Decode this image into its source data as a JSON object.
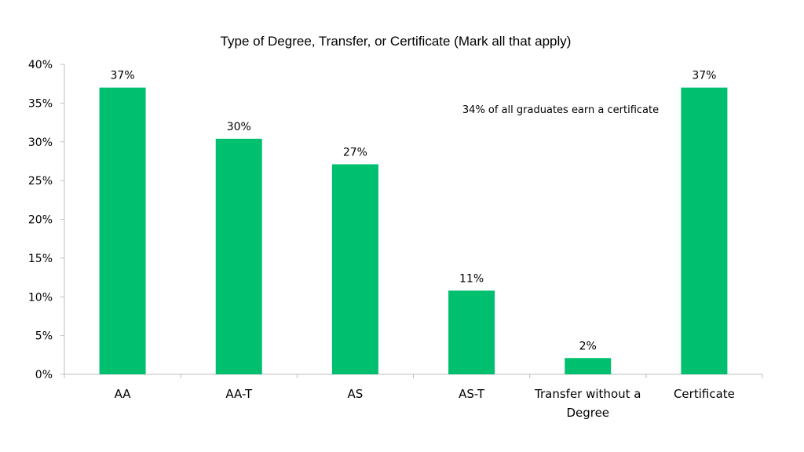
{
  "chart_data": {
    "type": "bar",
    "title": "Type of Degree, Transfer, or Certificate (Mark all that apply)",
    "xlabel": "",
    "ylabel": "",
    "categories": [
      [
        "AA"
      ],
      [
        "AA-T"
      ],
      [
        "AS"
      ],
      [
        "AS-T"
      ],
      [
        "Transfer without a",
        "Degree"
      ],
      [
        "Certificate"
      ]
    ],
    "values": [
      0.37,
      0.304,
      0.271,
      0.108,
      0.021,
      0.37
    ],
    "data_labels": [
      "37%",
      "30%",
      "27%",
      "11%",
      "2%",
      "37%"
    ],
    "ylim": [
      0,
      0.4
    ],
    "y_ticks": [
      {
        "value": 0.0,
        "label": "0%"
      },
      {
        "value": 0.05,
        "label": "5%"
      },
      {
        "value": 0.1,
        "label": "10%"
      },
      {
        "value": 0.15,
        "label": "15%"
      },
      {
        "value": 0.2,
        "label": "20%"
      },
      {
        "value": 0.25,
        "label": "25%"
      },
      {
        "value": 0.3,
        "label": "30%"
      },
      {
        "value": 0.35,
        "label": "35%"
      },
      {
        "value": 0.4,
        "label": "40%"
      }
    ],
    "annotation": "34% of all graduates earn a certificate",
    "grid": false,
    "legend": "none",
    "colors": {
      "bar": "#00BF6F",
      "axis": "#BFBFBF",
      "text": "#000000"
    }
  }
}
